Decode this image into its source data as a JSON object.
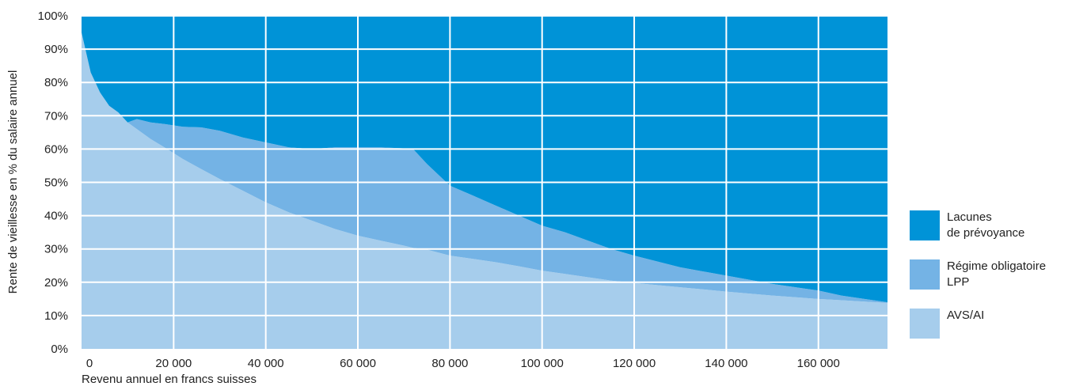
{
  "chart_data": {
    "type": "area",
    "stacking": "stacked",
    "xlabel": "Revenu annuel en francs suisses",
    "ylabel": "Rente de vieillesse en % du salaire annuel",
    "xlim": [
      0,
      175000
    ],
    "ylim": [
      0,
      100
    ],
    "x_ticks": [
      0,
      20000,
      40000,
      60000,
      80000,
      100000,
      120000,
      140000,
      160000
    ],
    "x_tick_labels": [
      "0",
      "20 000",
      "40 000",
      "60 000",
      "80 000",
      "100 000",
      "120 000",
      "140 000",
      "160 000"
    ],
    "y_ticks": [
      0,
      10,
      20,
      30,
      40,
      50,
      60,
      70,
      80,
      90,
      100
    ],
    "y_tick_labels": [
      "0%",
      "10%",
      "20%",
      "30%",
      "40%",
      "50%",
      "60%",
      "70%",
      "80%",
      "90%",
      "100%"
    ],
    "grid": true,
    "legend_position": "right",
    "x": [
      0,
      2000,
      4000,
      6000,
      8000,
      10000,
      12000,
      15000,
      18000,
      22000,
      26000,
      30000,
      35000,
      40000,
      45000,
      50000,
      55000,
      60000,
      65000,
      70000,
      72000,
      75000,
      80000,
      85000,
      90000,
      95000,
      100000,
      105000,
      110000,
      115000,
      120000,
      130000,
      140000,
      150000,
      160000,
      165000,
      170000,
      175000
    ],
    "series": [
      {
        "name": "AVS/AI",
        "color": "#a6cdec",
        "values": [
          95,
          83,
          77,
          73,
          71,
          68,
          66,
          63,
          60.5,
          57,
          54,
          51,
          47.5,
          44,
          41,
          38.5,
          36,
          34,
          32.5,
          31,
          30.3,
          29.8,
          28,
          27,
          26,
          24.8,
          23.5,
          22.5,
          21.5,
          20.5,
          19.8,
          18.5,
          17.2,
          16,
          15,
          14.6,
          14.2,
          13.8
        ]
      },
      {
        "name": "Régime obligatoire LPP",
        "color": "#74b3e5",
        "values": [
          0,
          0,
          0,
          0,
          0,
          0,
          3,
          5,
          7,
          9.7,
          12.5,
          14.5,
          16,
          18,
          19.5,
          21.5,
          24.5,
          26.5,
          28,
          29.2,
          29.7,
          25.7,
          21,
          19,
          17,
          15.2,
          13.5,
          12.5,
          11,
          9.5,
          8.2,
          6,
          4.8,
          3.5,
          2.5,
          1.4,
          0.8,
          0.2
        ]
      },
      {
        "name": "Lacunes de prévoyance",
        "color": "#0093d7",
        "values": [
          5,
          17,
          23,
          27,
          29,
          32,
          31,
          32,
          32.5,
          33.3,
          33.5,
          34.5,
          36.5,
          38,
          39.5,
          40,
          39.5,
          39.5,
          39.5,
          39.8,
          40,
          44.5,
          51,
          54,
          57,
          60,
          63,
          65,
          67.5,
          70,
          72,
          75.5,
          78,
          80.5,
          82.5,
          84,
          85,
          86
        ]
      }
    ]
  },
  "legend": [
    {
      "label": "Lacunes\nde prévoyance",
      "color": "#0093d7"
    },
    {
      "label": "Régime obligatoire\nLPP",
      "color": "#74b3e5"
    },
    {
      "label": "AVS/AI",
      "color": "#a6cdec"
    }
  ]
}
